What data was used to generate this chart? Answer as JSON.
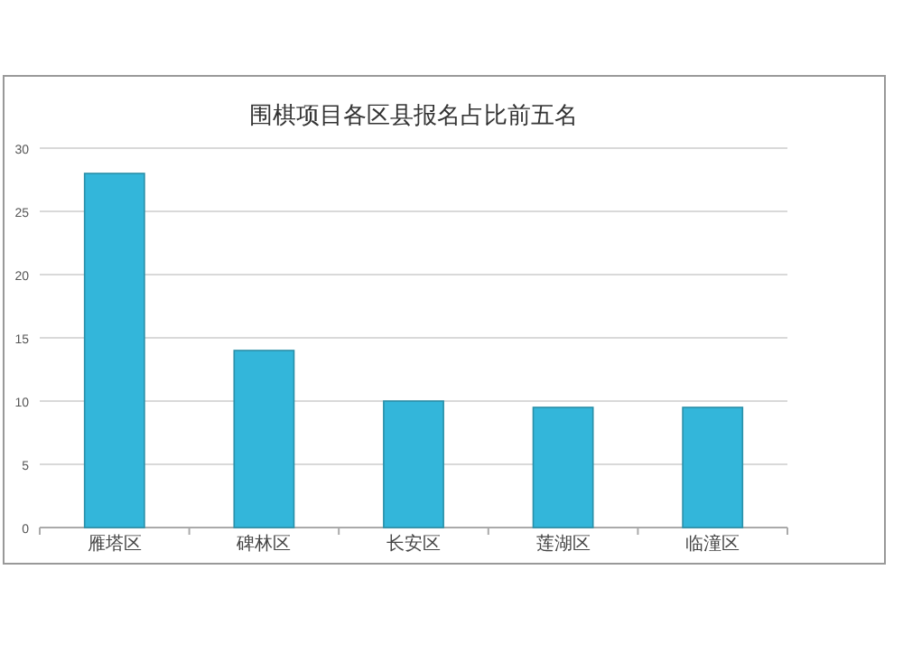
{
  "chart_data": {
    "type": "bar",
    "title": "围棋项目各区县报名占比前五名",
    "categories": [
      "雁塔区",
      "碑林区",
      "长安区",
      "莲湖区",
      "临潼区"
    ],
    "values": [
      28,
      14,
      10,
      9.5,
      9.5
    ],
    "color": "#33b6da",
    "ylim": [
      0,
      30
    ],
    "yticks": [
      0,
      5,
      10,
      15,
      20,
      25,
      30
    ],
    "grid": "y"
  }
}
